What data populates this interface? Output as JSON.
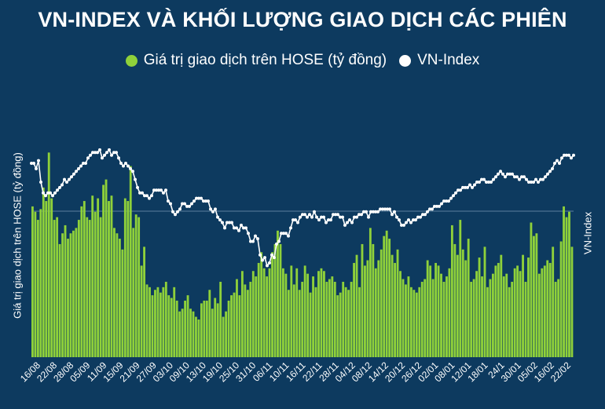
{
  "chart_data": {
    "type": "bar",
    "title": "VN-INDEX VÀ KHỐI LƯỢNG GIAO DỊCH CÁC PHIÊN",
    "ylabel": "Giá trị giao dịch trên HOSE (tỷ đồng)",
    "y2label": "VN-Index",
    "legend": {
      "position": "top"
    },
    "grid": false,
    "colors": {
      "bars": "#8fd13a",
      "line": "#ffffff",
      "background": "#0d3a5f"
    },
    "x_tick_labels": [
      "16/08",
      "22/08",
      "28/08",
      "05/09",
      "11/09",
      "15/09",
      "21/09",
      "27/09",
      "03/10",
      "09/10",
      "13/10",
      "19/10",
      "25/10",
      "31/10",
      "06/11",
      "10/11",
      "16/11",
      "22/11",
      "28/11",
      "04/12",
      "08/12",
      "14/12",
      "20/12",
      "26/12",
      "02/01",
      "08/01",
      "12/01",
      "18/01",
      "24/1",
      "30/01",
      "05/02",
      "16/02",
      "22/02"
    ],
    "bar_scale": [
      0,
      100
    ],
    "line_scale": [
      0,
      100
    ],
    "series": [
      {
        "name": "Giá trị giao dịch trên HOSE (tỷ đồng)",
        "type": "bar",
        "values": [
          56,
          54,
          51,
          55,
          63,
          58,
          76,
          59,
          51,
          52,
          42,
          46,
          49,
          44,
          46,
          47,
          48,
          51,
          56,
          58,
          52,
          51,
          60,
          54,
          59,
          52,
          64,
          66,
          58,
          60,
          48,
          46,
          44,
          40,
          59,
          58,
          71,
          48,
          53,
          52,
          34,
          41,
          27,
          26,
          23,
          25,
          26,
          24,
          26,
          28,
          23,
          22,
          26,
          21,
          17,
          18,
          21,
          23,
          18,
          17,
          15,
          14,
          20,
          21,
          21,
          25,
          18,
          22,
          20,
          28,
          15,
          17,
          21,
          23,
          24,
          29,
          23,
          32,
          27,
          25,
          28,
          32,
          30,
          35,
          39,
          33,
          30,
          33,
          39,
          42,
          47,
          42,
          33,
          31,
          25,
          34,
          27,
          33,
          25,
          28,
          34,
          31,
          24,
          30,
          26,
          32,
          33,
          32,
          28,
          29,
          30,
          28,
          23,
          24,
          28,
          26,
          25,
          28,
          35,
          38,
          26,
          42,
          34,
          36,
          48,
          42,
          33,
          36,
          40,
          45,
          47,
          44,
          38,
          35,
          40,
          32,
          29,
          27,
          30,
          26,
          25,
          24,
          26,
          28,
          29,
          36,
          34,
          29,
          35,
          34,
          31,
          28,
          30,
          33,
          49,
          42,
          38,
          51,
          40,
          36,
          44,
          28,
          29,
          32,
          37,
          30,
          41,
          26,
          29,
          31,
          34,
          35,
          38,
          30,
          31,
          26,
          28,
          33,
          34,
          32,
          38,
          28,
          37,
          50,
          45,
          46,
          31,
          33,
          34,
          36,
          35,
          41,
          28,
          29,
          43,
          56,
          52,
          54,
          41
        ]
      },
      {
        "name": "VN-Index",
        "type": "line",
        "values": [
          72,
          72,
          70,
          73,
          65,
          61,
          60,
          61,
          61,
          60,
          61,
          62,
          63,
          64,
          66,
          65,
          66,
          67,
          68,
          69,
          70,
          71,
          72,
          72,
          74,
          75,
          76,
          76,
          76,
          77,
          74,
          75,
          76,
          77,
          75,
          76,
          76,
          74,
          72,
          71,
          72,
          71,
          70,
          69,
          66,
          63,
          61,
          61,
          60,
          60,
          59,
          60,
          62,
          62,
          62,
          62,
          61,
          62,
          58,
          57,
          54,
          53,
          54,
          55,
          57,
          57,
          56,
          56,
          57,
          58,
          59,
          59,
          59,
          58,
          58,
          58,
          55,
          54,
          55,
          52,
          51,
          50,
          48,
          50,
          50,
          50,
          48,
          48,
          47,
          49,
          48,
          48,
          46,
          43,
          43,
          45,
          44,
          38,
          36,
          37,
          34,
          35,
          38,
          37,
          42,
          43,
          46,
          46,
          46,
          45,
          48,
          51,
          51,
          50,
          52,
          53,
          53,
          52,
          53,
          52,
          54,
          52,
          51,
          52,
          52,
          50,
          51,
          51,
          53,
          53,
          53,
          52,
          52,
          49,
          50,
          51,
          50,
          52,
          52,
          53,
          53,
          54,
          54,
          52,
          54,
          54,
          54,
          54,
          55,
          55,
          55,
          55,
          55,
          53,
          54,
          52,
          51,
          49,
          49,
          50,
          51,
          50,
          51,
          51,
          52,
          52,
          53,
          53,
          54,
          55,
          55,
          56,
          56,
          56,
          57,
          58,
          58,
          58,
          59,
          60,
          61,
          62,
          62,
          63,
          63,
          63,
          64,
          63,
          64,
          65,
          65,
          66,
          66,
          65,
          65,
          65,
          66,
          67,
          68,
          69,
          68,
          67,
          68,
          68,
          68,
          67,
          67,
          66,
          67,
          67,
          66,
          65,
          65,
          65,
          66,
          65,
          66,
          66,
          67,
          68,
          69,
          70,
          72,
          73,
          72,
          74,
          75,
          75,
          75,
          74,
          75
        ]
      }
    ]
  }
}
